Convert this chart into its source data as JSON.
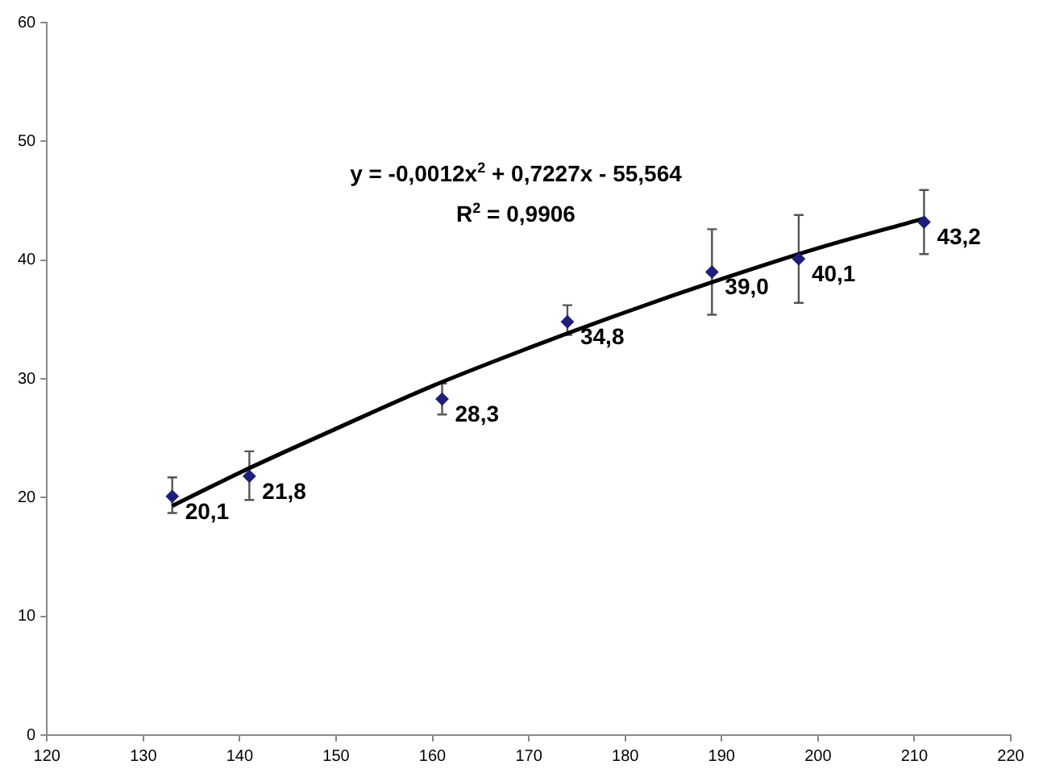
{
  "chart_data": {
    "type": "scatter",
    "grid": false,
    "legend": false,
    "xlim": [
      120,
      220
    ],
    "xticks": [
      120,
      130,
      140,
      150,
      160,
      170,
      180,
      190,
      200,
      210,
      220
    ],
    "ylim": [
      0,
      60
    ],
    "yticks": [
      0,
      10,
      20,
      30,
      40,
      50,
      60
    ],
    "annotations": [
      "y = -0,0012x$^{2}$ + 0,7227x - 55,564",
      "R$^{2}$ = 0,9906"
    ],
    "series": [
      {
        "marker": "diamond",
        "color": "#1f1f7a",
        "x": [
          133,
          141,
          161,
          174,
          189,
          198,
          211
        ],
        "values": [
          20.1,
          21.8,
          28.3,
          34.8,
          39.0,
          40.1,
          43.2
        ],
        "value_labels": [
          "20,1",
          "21,8",
          "28,3",
          "34,8",
          "39,0",
          "40,1",
          "43,2"
        ],
        "errors": [
          [
            18.7,
            21.7
          ],
          [
            19.8,
            23.9
          ],
          [
            27.0,
            29.6
          ],
          [
            33.7,
            36.2
          ],
          [
            35.4,
            42.6
          ],
          [
            36.4,
            43.8
          ],
          [
            40.5,
            45.9
          ]
        ]
      },
      {
        "type": "line",
        "color": "#000000",
        "x": [
          133,
          140,
          150,
          160,
          170,
          180,
          190,
          200,
          211
        ],
        "values": [
          19.3,
          22.1,
          25.8,
          29.4,
          32.6,
          35.6,
          38.4,
          41.0,
          43.5
        ]
      }
    ]
  }
}
